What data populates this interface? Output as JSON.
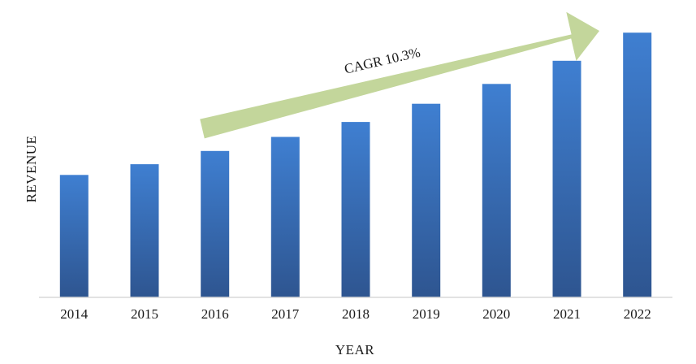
{
  "chart_data": {
    "type": "bar",
    "title": "",
    "xlabel": "YEAR",
    "ylabel": "REVENUE",
    "categories": [
      "2014",
      "2015",
      "2016",
      "2017",
      "2018",
      "2019",
      "2020",
      "2021",
      "2022"
    ],
    "series": [
      {
        "values": [
          148,
          161,
          177,
          194,
          212,
          234,
          258,
          286,
          320
        ]
      }
    ],
    "ylim": [
      0,
      330
    ],
    "grid": false,
    "y_tick_labels_shown": false,
    "annotation": {
      "text": "CAGR 10.3%",
      "shape": "arrow",
      "direction": "up-right",
      "from_category": "2016",
      "to_category": "2022"
    },
    "colors": {
      "bar_top": "#3f7fd1",
      "bar_bottom": "#2e5590",
      "arrow": "#c3d69b",
      "axis": "#d9d9d9"
    }
  }
}
